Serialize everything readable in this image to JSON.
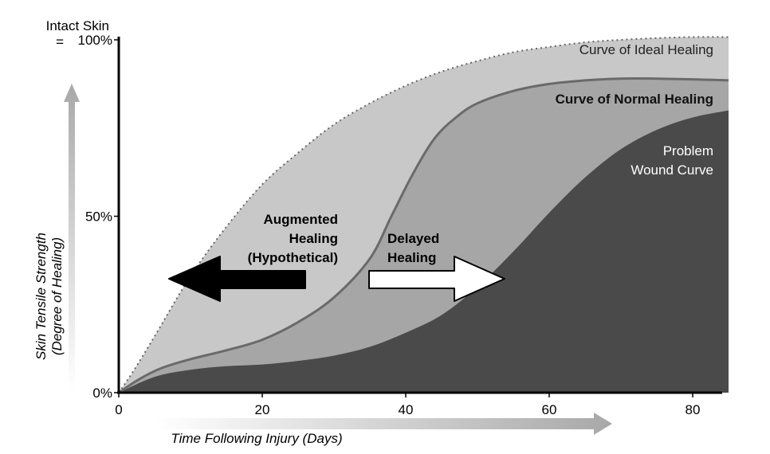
{
  "chart_data": {
    "type": "area",
    "x_range": [
      0,
      85
    ],
    "y_range": [
      0,
      100
    ],
    "x_ticks": [
      0,
      20,
      40,
      60,
      80
    ],
    "y_ticks": [
      {
        "value": 0,
        "label": "0%"
      },
      {
        "value": 50,
        "label": "50%"
      },
      {
        "value": 100,
        "label": "100%"
      }
    ],
    "y_top_label": [
      "Intact Skin",
      "="
    ],
    "xlabel": "Time Following Injury (Days)",
    "ylabel": [
      "Skin Tensile Strength",
      "(Degree of Healing)"
    ],
    "grid": false,
    "series": [
      {
        "name": "Curve of Ideal Healing",
        "color": "#c8c8c8",
        "points": [
          [
            0,
            0
          ],
          [
            2,
            6
          ],
          [
            5,
            16
          ],
          [
            10,
            33
          ],
          [
            15,
            47
          ],
          [
            20,
            59
          ],
          [
            25,
            68
          ],
          [
            30,
            76
          ],
          [
            35,
            82
          ],
          [
            40,
            87
          ],
          [
            45,
            91
          ],
          [
            50,
            94
          ],
          [
            55,
            96.5
          ],
          [
            60,
            98
          ],
          [
            65,
            99.3
          ],
          [
            70,
            100
          ],
          [
            75,
            100.5
          ],
          [
            80,
            100.8
          ],
          [
            85,
            100.8
          ]
        ]
      },
      {
        "name": "Curve of Normal Healing",
        "color": "#a6a6a6",
        "points": [
          [
            0,
            0
          ],
          [
            3,
            4
          ],
          [
            6,
            7
          ],
          [
            10,
            9.5
          ],
          [
            15,
            12
          ],
          [
            20,
            15
          ],
          [
            25,
            20
          ],
          [
            30,
            27
          ],
          [
            35,
            38
          ],
          [
            38,
            50
          ],
          [
            41,
            62
          ],
          [
            44,
            72
          ],
          [
            47,
            78
          ],
          [
            50,
            82
          ],
          [
            55,
            85.5
          ],
          [
            60,
            87.5
          ],
          [
            65,
            88.5
          ],
          [
            70,
            89
          ],
          [
            75,
            89
          ],
          [
            80,
            88.8
          ],
          [
            85,
            88.5
          ]
        ]
      },
      {
        "name": "Problem Wound Curve",
        "color": "#4a4a4a",
        "points": [
          [
            0,
            0
          ],
          [
            5,
            4.5
          ],
          [
            10,
            6.5
          ],
          [
            15,
            7.5
          ],
          [
            20,
            8
          ],
          [
            25,
            9
          ],
          [
            30,
            10.5
          ],
          [
            35,
            13
          ],
          [
            40,
            17
          ],
          [
            45,
            22
          ],
          [
            50,
            30
          ],
          [
            55,
            40
          ],
          [
            60,
            51
          ],
          [
            65,
            61
          ],
          [
            70,
            69
          ],
          [
            75,
            74.5
          ],
          [
            80,
            78
          ],
          [
            85,
            80
          ]
        ]
      }
    ],
    "annotations": [
      {
        "text": [
          "Augmented",
          "Healing",
          "(Hypothetical)"
        ],
        "arrow_direction": "left",
        "arrow_color": "#000000"
      },
      {
        "text": [
          "Delayed",
          "Healing"
        ],
        "arrow_direction": "right",
        "arrow_color": "#ffffff"
      }
    ]
  }
}
